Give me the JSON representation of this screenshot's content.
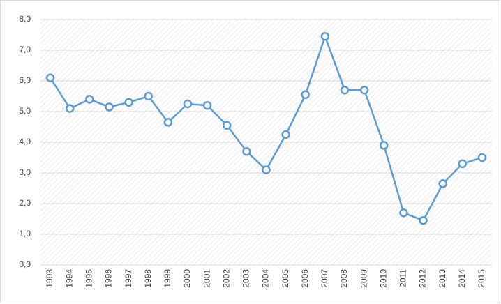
{
  "chart_data": {
    "type": "line",
    "categories": [
      "1993",
      "1994",
      "1995",
      "1996",
      "1997",
      "1998",
      "1999",
      "2000",
      "2001",
      "2002",
      "2003",
      "2004",
      "2005",
      "2006",
      "2007",
      "2008",
      "2009",
      "2010",
      "2011",
      "2012",
      "2013",
      "2014",
      "2015"
    ],
    "series": [
      {
        "color": "#5b9bd5",
        "values": [
          6.1,
          5.1,
          5.4,
          5.15,
          5.3,
          5.5,
          4.65,
          5.25,
          5.2,
          4.55,
          3.7,
          3.1,
          4.25,
          5.55,
          7.45,
          5.7,
          5.7,
          3.9,
          1.7,
          1.45,
          2.65,
          3.3,
          3.5
        ]
      }
    ],
    "ylim": [
      0,
      8
    ],
    "yticks": [
      {
        "value": 0,
        "label": "0,0"
      },
      {
        "value": 1,
        "label": "1,0"
      },
      {
        "value": 2,
        "label": "2,0"
      },
      {
        "value": 3,
        "label": "3,0"
      },
      {
        "value": 4,
        "label": "4,0"
      },
      {
        "value": 5,
        "label": "5,0"
      },
      {
        "value": 6,
        "label": "6,0"
      },
      {
        "value": 7,
        "label": "7,0"
      },
      {
        "value": 8,
        "label": "8,0"
      }
    ],
    "grid": true
  }
}
